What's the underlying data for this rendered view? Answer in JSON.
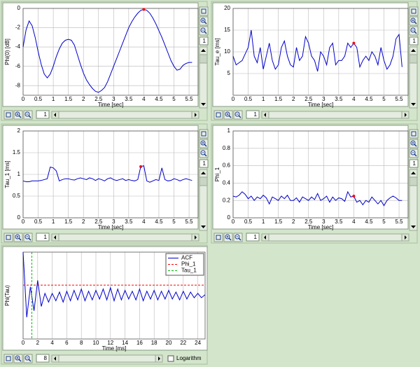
{
  "chart_data": [
    {
      "type": "line",
      "ylabel": "Phi(0) [dB]",
      "xlabel": "Time [sec]",
      "color": "#0000cc",
      "x": [
        0,
        0.1,
        0.2,
        0.3,
        0.4,
        0.5,
        0.6,
        0.7,
        0.8,
        0.9,
        1,
        1.1,
        1.2,
        1.3,
        1.4,
        1.5,
        1.6,
        1.7,
        1.8,
        1.9,
        2,
        2.1,
        2.2,
        2.3,
        2.4,
        2.5,
        2.6,
        2.7,
        2.8,
        2.9,
        3,
        3.1,
        3.2,
        3.3,
        3.4,
        3.5,
        3.6,
        3.7,
        3.8,
        3.9,
        4,
        4.1,
        4.2,
        4.3,
        4.4,
        4.5,
        4.6,
        4.7,
        4.8,
        4.9,
        5,
        5.1,
        5.2,
        5.3,
        5.4,
        5.5,
        5.6
      ],
      "values": [
        -4.0,
        -2.2,
        -1.3,
        -1.8,
        -3.0,
        -4.5,
        -5.8,
        -6.8,
        -7.2,
        -6.8,
        -6.0,
        -5.0,
        -4.2,
        -3.6,
        -3.3,
        -3.2,
        -3.3,
        -3.8,
        -4.8,
        -5.8,
        -6.7,
        -7.4,
        -7.9,
        -8.3,
        -8.6,
        -8.7,
        -8.5,
        -8.2,
        -7.6,
        -6.8,
        -6.0,
        -5.2,
        -4.4,
        -3.6,
        -2.8,
        -2.0,
        -1.4,
        -0.9,
        -0.5,
        -0.2,
        -0.1,
        -0.2,
        -0.5,
        -1.0,
        -1.6,
        -2.3,
        -3.0,
        -3.8,
        -4.6,
        -5.4,
        -6.0,
        -6.4,
        -6.3,
        -5.9,
        -5.7,
        -5.6,
        -5.6
      ],
      "highlight": {
        "index": 40,
        "color": "#ff0000"
      },
      "xlim": [
        0,
        5.8
      ],
      "xticks": [
        0,
        0.5,
        1,
        1.5,
        2,
        2.5,
        3,
        3.5,
        4,
        4.5,
        5,
        5.5
      ],
      "ylim": [
        -9,
        0
      ],
      "yticks": [
        -8,
        -6,
        -4,
        -2,
        0
      ],
      "grid": true
    },
    {
      "type": "line",
      "ylabel": "Tau_e [ms]",
      "xlabel": "Time [sec]",
      "color": "#0000cc",
      "x": [
        0,
        0.1,
        0.2,
        0.3,
        0.4,
        0.5,
        0.6,
        0.7,
        0.8,
        0.9,
        1,
        1.1,
        1.2,
        1.3,
        1.4,
        1.5,
        1.6,
        1.7,
        1.8,
        1.9,
        2,
        2.1,
        2.2,
        2.3,
        2.4,
        2.5,
        2.6,
        2.7,
        2.8,
        2.9,
        3,
        3.1,
        3.2,
        3.3,
        3.4,
        3.5,
        3.6,
        3.7,
        3.8,
        3.9,
        4,
        4.1,
        4.2,
        4.3,
        4.4,
        4.5,
        4.6,
        4.7,
        4.8,
        4.9,
        5,
        5.1,
        5.2,
        5.3,
        5.4,
        5.5,
        5.6
      ],
      "values": [
        9,
        7,
        7.5,
        8,
        9.5,
        11,
        15,
        9,
        7.5,
        11,
        6,
        9,
        12,
        8,
        6,
        7,
        11,
        12.5,
        9,
        7,
        6.5,
        11,
        8,
        9,
        13.5,
        12,
        9,
        8,
        5.5,
        10,
        9,
        7,
        11,
        12,
        7,
        8,
        8,
        9,
        12,
        11,
        12,
        11,
        6.5,
        8,
        9,
        8,
        10,
        9,
        7,
        11,
        8,
        6,
        7,
        9,
        13,
        14,
        6.5
      ],
      "highlight": {
        "index": 40,
        "color": "#ff0000"
      },
      "xlim": [
        0,
        5.8
      ],
      "xticks": [
        0,
        0.5,
        1,
        1.5,
        2,
        2.5,
        3,
        3.5,
        4,
        4.5,
        5,
        5.5
      ],
      "ylim": [
        0,
        20
      ],
      "yticks": [
        5,
        10,
        15,
        20
      ],
      "grid": true
    },
    {
      "type": "line",
      "ylabel": "Tau_1 [ms]",
      "xlabel": "Time [sec]",
      "color": "#0000cc",
      "x": [
        0,
        0.1,
        0.2,
        0.3,
        0.4,
        0.5,
        0.6,
        0.7,
        0.8,
        0.9,
        1,
        1.1,
        1.2,
        1.3,
        1.4,
        1.5,
        1.6,
        1.7,
        1.8,
        1.9,
        2,
        2.1,
        2.2,
        2.3,
        2.4,
        2.5,
        2.6,
        2.7,
        2.8,
        2.9,
        3,
        3.1,
        3.2,
        3.3,
        3.4,
        3.5,
        3.6,
        3.7,
        3.8,
        3.9,
        4,
        4.1,
        4.2,
        4.3,
        4.4,
        4.5,
        4.6,
        4.7,
        4.8,
        4.9,
        5,
        5.1,
        5.2,
        5.3,
        5.4,
        5.5,
        5.6
      ],
      "values": [
        0.85,
        0.83,
        0.83,
        0.85,
        0.85,
        0.85,
        0.86,
        0.88,
        0.9,
        1.17,
        1.15,
        1.08,
        0.85,
        0.88,
        0.9,
        0.9,
        0.88,
        0.87,
        0.9,
        0.92,
        0.9,
        0.88,
        0.92,
        0.9,
        0.86,
        0.9,
        0.88,
        0.85,
        0.9,
        0.92,
        0.88,
        0.86,
        0.88,
        0.9,
        0.86,
        0.88,
        0.86,
        0.85,
        0.88,
        1.18,
        1.2,
        0.85,
        0.82,
        0.85,
        0.88,
        0.86,
        1.15,
        0.88,
        0.85,
        0.86,
        0.9,
        0.88,
        0.85,
        0.88,
        0.9,
        0.88,
        0.86
      ],
      "highlight": {
        "index": 39,
        "color": "#ff0000"
      },
      "xlim": [
        0,
        5.8
      ],
      "xticks": [
        0,
        0.5,
        1,
        1.5,
        2,
        2.5,
        3,
        3.5,
        4,
        4.5,
        5,
        5.5
      ],
      "ylim": [
        0,
        2
      ],
      "yticks": [
        0,
        0.5,
        1,
        1.5,
        2
      ],
      "grid": true
    },
    {
      "type": "line",
      "ylabel": "Phi_1",
      "xlabel": "Time [sec]",
      "color": "#0000cc",
      "x": [
        0,
        0.1,
        0.2,
        0.3,
        0.4,
        0.5,
        0.6,
        0.7,
        0.8,
        0.9,
        1,
        1.1,
        1.2,
        1.3,
        1.4,
        1.5,
        1.6,
        1.7,
        1.8,
        1.9,
        2,
        2.1,
        2.2,
        2.3,
        2.4,
        2.5,
        2.6,
        2.7,
        2.8,
        2.9,
        3,
        3.1,
        3.2,
        3.3,
        3.4,
        3.5,
        3.6,
        3.7,
        3.8,
        3.9,
        4,
        4.1,
        4.2,
        4.3,
        4.4,
        4.5,
        4.6,
        4.7,
        4.8,
        4.9,
        5,
        5.1,
        5.2,
        5.3,
        5.4,
        5.5,
        5.6
      ],
      "values": [
        0.25,
        0.24,
        0.26,
        0.3,
        0.27,
        0.22,
        0.25,
        0.2,
        0.24,
        0.22,
        0.26,
        0.23,
        0.16,
        0.24,
        0.22,
        0.2,
        0.25,
        0.22,
        0.26,
        0.2,
        0.2,
        0.23,
        0.18,
        0.24,
        0.22,
        0.2,
        0.24,
        0.21,
        0.28,
        0.2,
        0.22,
        0.25,
        0.18,
        0.24,
        0.2,
        0.23,
        0.22,
        0.19,
        0.3,
        0.24,
        0.25,
        0.18,
        0.2,
        0.15,
        0.2,
        0.18,
        0.24,
        0.2,
        0.16,
        0.2,
        0.14,
        0.2,
        0.23,
        0.25,
        0.23,
        0.2,
        0.2
      ],
      "highlight": {
        "index": 40,
        "color": "#ff0000"
      },
      "xlim": [
        0,
        5.8
      ],
      "xticks": [
        0,
        0.5,
        1,
        1.5,
        2,
        2.5,
        3,
        3.5,
        4,
        4.5,
        5,
        5.5
      ],
      "ylim": [
        0,
        1
      ],
      "yticks": [
        0,
        0.2,
        0.4,
        0.6,
        0.8,
        1
      ],
      "grid": true
    },
    {
      "type": "line",
      "ylabel": "Phi(Tau)",
      "xlabel": "Time [ms]",
      "x": [
        0,
        0.5,
        1,
        1.5,
        2,
        2.5,
        3,
        3.5,
        4,
        4.5,
        5,
        5.5,
        6,
        6.5,
        7,
        7.5,
        8,
        8.5,
        9,
        9.5,
        10,
        10.5,
        11,
        11.5,
        12,
        12.5,
        13,
        13.5,
        14,
        14.5,
        15,
        15.5,
        16,
        16.5,
        17,
        17.5,
        18,
        18.5,
        19,
        19.5,
        20,
        20.5,
        21,
        21.5,
        22,
        22.5,
        23,
        23.5,
        24,
        24.5,
        25
      ],
      "series": [
        {
          "name": "ACF",
          "color": "#0000cc",
          "values": [
            1,
            -0.5,
            0.2,
            -0.35,
            0.35,
            -0.25,
            0.05,
            -0.15,
            0.05,
            -0.12,
            0.08,
            -0.15,
            0.1,
            -0.12,
            0.12,
            -0.1,
            0.15,
            -0.12,
            0.1,
            -0.1,
            0.12,
            -0.08,
            0.15,
            -0.1,
            0.18,
            -0.12,
            0.15,
            -0.1,
            0.12,
            -0.08,
            0.1,
            -0.1,
            0.15,
            -0.12,
            0.1,
            -0.08,
            0.12,
            -0.1,
            0.1,
            -0.08,
            0.12,
            -0.08,
            0.08,
            -0.1,
            0.1,
            -0.08,
            0.08,
            -0.05,
            0.05,
            -0.05,
            0.02
          ]
        },
        {
          "name": "Phi_1",
          "color": "#ff0000",
          "dashed": true,
          "y": 0.24
        },
        {
          "name": "Tau_1",
          "color": "#00bb00",
          "dashed": true,
          "x": 1.2
        }
      ],
      "xlim": [
        0,
        25
      ],
      "xticks": [
        0,
        2,
        4,
        6,
        8,
        10,
        12,
        14,
        16,
        18,
        20,
        22,
        24
      ],
      "ylim": [
        -1,
        1
      ],
      "grid": true,
      "legend": "upper right"
    }
  ],
  "ui": {
    "panels": [
      {
        "side_field": "1",
        "bottom_field": "1"
      },
      {
        "side_field": "1",
        "bottom_field": "1"
      },
      {
        "side_field": "1",
        "bottom_field": "1"
      },
      {
        "side_field": "1",
        "bottom_field": "1"
      },
      {
        "bottom_field": "8",
        "checkbox": "Logarithm"
      }
    ]
  }
}
